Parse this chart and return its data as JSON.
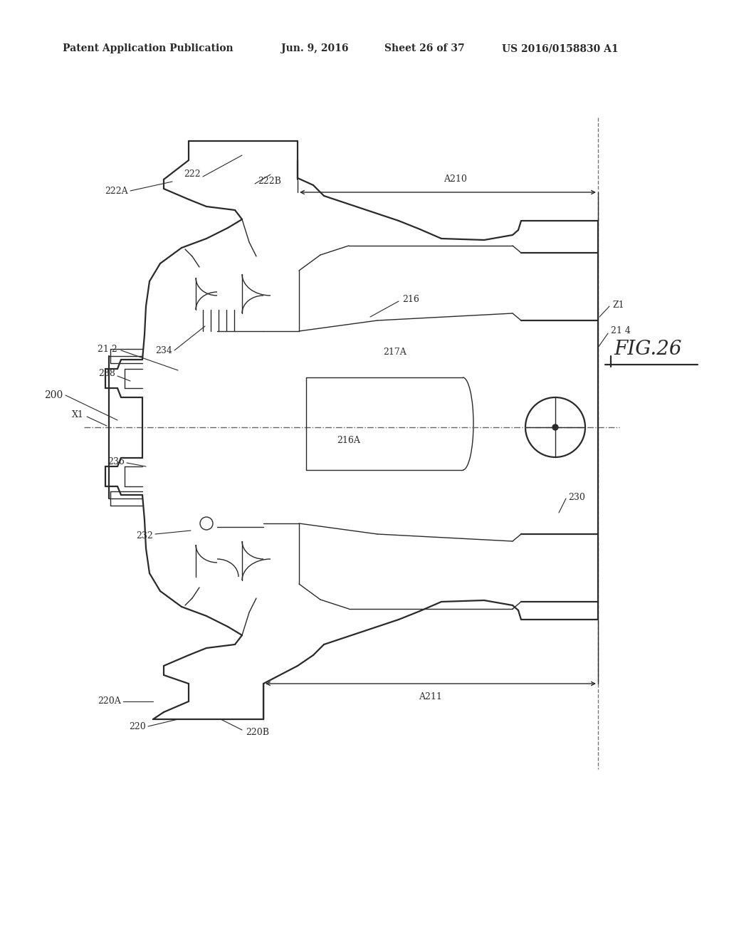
{
  "bg_color": "#ffffff",
  "line_color": "#2a2a2a",
  "header_text": "Patent Application Publication",
  "header_date": "Jun. 9, 2016",
  "header_sheet": "Sheet 26 of 37",
  "header_patent": "US 2016/0158830 A1",
  "fig_label": "FIG.26",
  "lw_main": 1.6,
  "lw_thin": 1.0,
  "lw_xtra": 0.7
}
